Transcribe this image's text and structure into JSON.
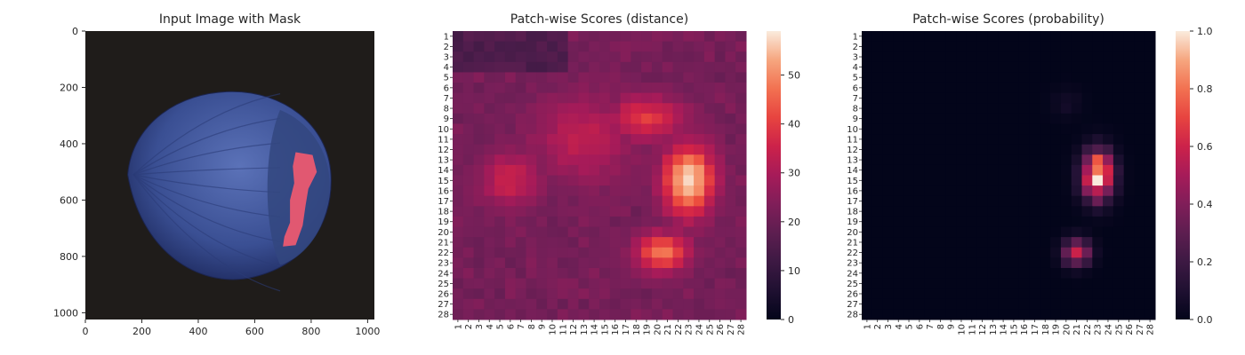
{
  "chart_data": [
    {
      "type": "image",
      "title": "Input Image with Mask",
      "xlim": [
        0,
        1024
      ],
      "ylim": [
        1024,
        0
      ],
      "xticks": [
        0,
        200,
        400,
        600,
        800,
        1000
      ],
      "yticks": [
        0,
        200,
        400,
        600,
        800,
        1000
      ],
      "colors": {
        "background": "#1f1c1a",
        "object": "#3a4f93",
        "object_highlight": "#5b72b8",
        "mask": "#f05a70"
      }
    },
    {
      "type": "heatmap",
      "title": "Patch-wise Scores (distance)",
      "rows": 28,
      "cols": 28,
      "row_labels": [
        "1",
        "2",
        "3",
        "4",
        "5",
        "6",
        "7",
        "8",
        "9",
        "10",
        "11",
        "12",
        "13",
        "14",
        "15",
        "16",
        "17",
        "18",
        "19",
        "20",
        "21",
        "22",
        "23",
        "24",
        "25",
        "26",
        "27",
        "28"
      ],
      "col_labels": [
        "1",
        "2",
        "3",
        "4",
        "5",
        "6",
        "7",
        "8",
        "9",
        "10",
        "11",
        "12",
        "13",
        "14",
        "15",
        "16",
        "17",
        "18",
        "19",
        "20",
        "21",
        "22",
        "23",
        "24",
        "25",
        "26",
        "27",
        "28"
      ],
      "colormap": "rocket",
      "vmin": 0,
      "vmax": 59,
      "colorbar_ticks": [
        0,
        10,
        20,
        30,
        40,
        50
      ],
      "base": 21,
      "hotspots": [
        {
          "row": 15,
          "col": 23,
          "peak": 58,
          "sr": 2.4,
          "sc": 1.7
        },
        {
          "row": 22,
          "col": 20.5,
          "peak": 48,
          "sr": 1.3,
          "sc": 1.8
        },
        {
          "row": 9,
          "col": 19,
          "peak": 40,
          "sr": 1.5,
          "sc": 2.5
        },
        {
          "row": 15,
          "col": 6,
          "peak": 35,
          "sr": 2.0,
          "sc": 2.0
        },
        {
          "row": 11,
          "col": 13,
          "peak": 33,
          "sr": 3.0,
          "sc": 3.5
        }
      ],
      "cold_region": {
        "rows": [
          1,
          4
        ],
        "cols": [
          1,
          11
        ],
        "value": 15
      }
    },
    {
      "type": "heatmap",
      "title": "Patch-wise Scores (probability)",
      "rows": 28,
      "cols": 28,
      "row_labels": [
        "1",
        "2",
        "3",
        "4",
        "5",
        "6",
        "7",
        "8",
        "9",
        "10",
        "11",
        "12",
        "13",
        "14",
        "15",
        "16",
        "17",
        "18",
        "19",
        "20",
        "21",
        "22",
        "23",
        "24",
        "25",
        "26",
        "27",
        "28"
      ],
      "col_labels": [
        "1",
        "2",
        "3",
        "4",
        "5",
        "6",
        "7",
        "8",
        "9",
        "10",
        "11",
        "12",
        "13",
        "14",
        "15",
        "16",
        "17",
        "18",
        "19",
        "20",
        "21",
        "22",
        "23",
        "24",
        "25",
        "26",
        "27",
        "28"
      ],
      "colormap": "rocket",
      "vmin": 0.0,
      "vmax": 1.0,
      "colorbar_ticks": [
        "0.0",
        "0.2",
        "0.4",
        "0.6",
        "0.8",
        "1.0"
      ],
      "base": 0,
      "hotspots": [
        {
          "row": 14.5,
          "col": 23,
          "peak": 1.0,
          "sr": 1.6,
          "sc": 1.0
        },
        {
          "row": 22,
          "col": 21,
          "peak": 0.55,
          "sr": 0.9,
          "sc": 0.9
        },
        {
          "row": 7.5,
          "col": 20,
          "peak": 0.06,
          "sr": 1.0,
          "sc": 1.0
        }
      ]
    }
  ]
}
